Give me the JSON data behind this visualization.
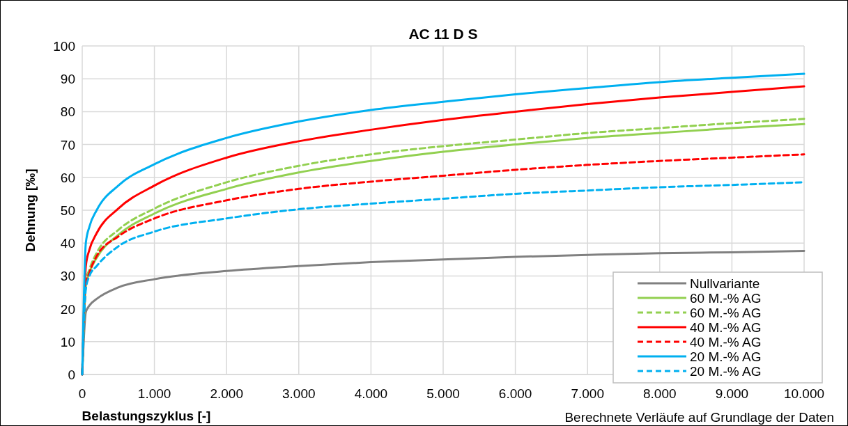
{
  "chart_data": {
    "type": "line",
    "title": "AC 11 D S",
    "xlabel": "Belastungszyklus [-]",
    "ylabel": "Dehnung [‰]",
    "x": [
      0,
      50,
      100,
      200,
      500,
      1000,
      2000,
      3000,
      4000,
      5000,
      6000,
      7000,
      8000,
      9000,
      10000
    ],
    "series": [
      {
        "name": "Nullvariante",
        "color": "#808080",
        "line_style": "solid",
        "values": [
          0,
          19,
          21,
          23,
          26.5,
          29,
          31.5,
          33,
          34.2,
          35,
          35.8,
          36.4,
          36.9,
          37.2,
          37.6
        ]
      },
      {
        "name": "60 M.-% AG",
        "color": "#92d050",
        "line_style": "solid",
        "values": [
          0,
          27,
          31,
          35.5,
          42.5,
          49,
          56.5,
          61.5,
          65,
          67.8,
          70,
          72,
          73.5,
          75,
          76.2
        ]
      },
      {
        "name": "60 M.-% AG",
        "color": "#92d050",
        "line_style": "dashed",
        "values": [
          0,
          28,
          32,
          37,
          44,
          50.5,
          58.5,
          63.5,
          67,
          69.5,
          71.5,
          73.5,
          75,
          76.5,
          77.8
        ]
      },
      {
        "name": "40 M.-% AG",
        "color": "#ff0000",
        "line_style": "solid",
        "values": [
          0,
          33,
          38,
          43,
          50.5,
          57.5,
          66,
          71,
          74.5,
          77.5,
          80,
          82.3,
          84.3,
          86,
          87.7
        ]
      },
      {
        "name": "40 M.-% AG",
        "color": "#ff0000",
        "line_style": "dashed",
        "values": [
          0,
          27,
          31,
          36,
          42,
          47.5,
          53,
          56.5,
          58.7,
          60.5,
          62.3,
          63.8,
          65,
          66,
          67
        ]
      },
      {
        "name": "20 M.-% AG",
        "color": "#00b0f0",
        "line_style": "solid",
        "values": [
          0,
          40,
          45,
          50,
          57.5,
          64,
          72,
          77,
          80.5,
          83,
          85.3,
          87.2,
          89,
          90.3,
          91.5
        ]
      },
      {
        "name": "20 M.-% AG",
        "color": "#00b0f0",
        "line_style": "dashed",
        "values": [
          0,
          26,
          30,
          33,
          39,
          43.5,
          47.5,
          50.3,
          52,
          53.5,
          55,
          56,
          57,
          57.7,
          58.5
        ]
      }
    ],
    "xlim": [
      0,
      10000
    ],
    "xticks": [
      0,
      {
        "value": 1000,
        "label": "1.000"
      },
      {
        "value": 2000,
        "label": "2.000"
      },
      {
        "value": 3000,
        "label": "3.000"
      },
      {
        "value": 4000,
        "label": "4.000"
      },
      {
        "value": 5000,
        "label": "5.000"
      },
      {
        "value": 6000,
        "label": "6.000"
      },
      {
        "value": 7000,
        "label": "7.000"
      },
      {
        "value": 8000,
        "label": "8.000"
      },
      {
        "value": 9000,
        "label": "9.000"
      },
      {
        "value": 10000,
        "label": "10.000"
      }
    ],
    "ylim": [
      0,
      100
    ],
    "yticks": [
      0,
      10,
      20,
      30,
      40,
      50,
      60,
      70,
      80,
      90,
      100
    ],
    "grid": true,
    "legend": "bottom right",
    "annotations": [
      "Berechnete Verläufe auf Grundlage der Daten"
    ]
  }
}
